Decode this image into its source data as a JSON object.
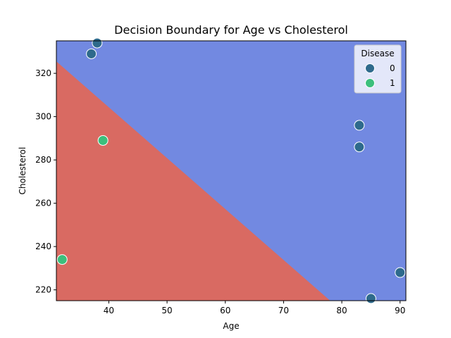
{
  "chart_data": {
    "type": "scatter",
    "title": "Decision Boundary for Age vs Cholesterol",
    "xlabel": "Age",
    "ylabel": "Cholesterol",
    "xlim": [
      31,
      91
    ],
    "ylim": [
      215,
      335
    ],
    "xticks": [
      40,
      50,
      60,
      70,
      80,
      90
    ],
    "yticks": [
      220,
      240,
      260,
      280,
      300,
      320
    ],
    "legend": {
      "title": "Disease",
      "placement": "top-right",
      "entries": [
        {
          "label": "0",
          "color": "#2e6a8c"
        },
        {
          "label": "1",
          "color": "#3cbf7c"
        }
      ]
    },
    "decision_boundary": {
      "line_points": [
        [
          31,
          325.5
        ],
        [
          78,
          215
        ]
      ],
      "region_below_class": "1",
      "region_above_class": "0",
      "region_colors": {
        "0": "#7289e1",
        "1": "#d96a62"
      }
    },
    "series": [
      {
        "class": "0",
        "color": "#2e6a8c",
        "points": [
          [
            37,
            329
          ],
          [
            38,
            334
          ],
          [
            83,
            296
          ],
          [
            83,
            286
          ],
          [
            90,
            228
          ],
          [
            85,
            216
          ]
        ]
      },
      {
        "class": "1",
        "color": "#3cbf7c",
        "points": [
          [
            39,
            289
          ],
          [
            32,
            234
          ]
        ]
      }
    ]
  }
}
